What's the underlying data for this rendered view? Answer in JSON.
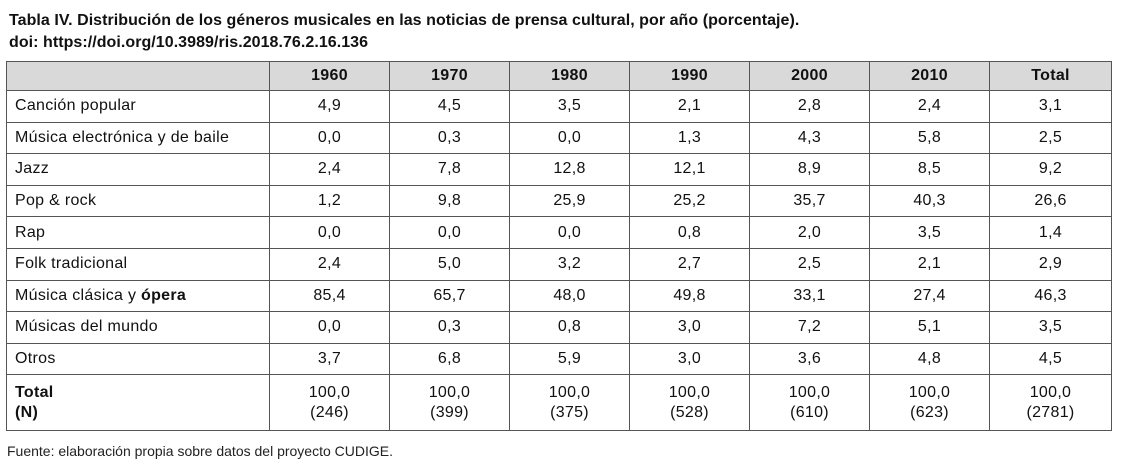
{
  "caption": {
    "line1": "Tabla IV. Distribución de los géneros musicales en las noticias de prensa cultural, por año (porcentaje).",
    "line2": "doi: https://doi.org/10.3989/ris.2018.76.2.16.136"
  },
  "table": {
    "columns": [
      "1960",
      "1970",
      "1980",
      "1990",
      "2000",
      "2010",
      "Total"
    ],
    "rows": [
      {
        "label": "Canción popular",
        "values": [
          "4,9",
          "4,5",
          "3,5",
          "2,1",
          "2,8",
          "2,4",
          "3,1"
        ]
      },
      {
        "label": "Música electrónica y de baile",
        "values": [
          "0,0",
          "0,3",
          "0,0",
          "1,3",
          "4,3",
          "5,8",
          "2,5"
        ]
      },
      {
        "label": "Jazz",
        "values": [
          "2,4",
          "7,8",
          "12,8",
          "12,1",
          "8,9",
          "8,5",
          "9,2"
        ]
      },
      {
        "label": "Pop & rock",
        "values": [
          "1,2",
          "9,8",
          "25,9",
          "25,2",
          "35,7",
          "40,3",
          "26,6"
        ]
      },
      {
        "label": "Rap",
        "values": [
          "0,0",
          "0,0",
          "0,0",
          "0,8",
          "2,0",
          "3,5",
          "1,4"
        ]
      },
      {
        "label": "Folk tradicional",
        "values": [
          "2,4",
          "5,0",
          "3,2",
          "2,7",
          "2,5",
          "2,1",
          "2,9"
        ]
      },
      {
        "label_a": "Música clásica y ",
        "label_b": "ópera",
        "values": [
          "85,4",
          "65,7",
          "48,0",
          "49,8",
          "33,1",
          "27,4",
          "46,3"
        ]
      },
      {
        "label": "Músicas del mundo",
        "values": [
          "0,0",
          "0,3",
          "0,8",
          "3,0",
          "7,2",
          "5,1",
          "3,5"
        ]
      },
      {
        "label": "Otros",
        "values": [
          "3,7",
          "6,8",
          "5,9",
          "3,0",
          "3,6",
          "4,8",
          "4,5"
        ]
      }
    ],
    "total": {
      "label": "Total",
      "label_n": "(N)",
      "values": [
        "100,0",
        "100,0",
        "100,0",
        "100,0",
        "100,0",
        "100,0",
        "100,0"
      ],
      "n": [
        "(246)",
        "(399)",
        "(375)",
        "(528)",
        "(610)",
        "(623)",
        "(2781)"
      ]
    }
  },
  "source": "Fuente: elaboración propia sobre datos del proyecto CUDIGE."
}
